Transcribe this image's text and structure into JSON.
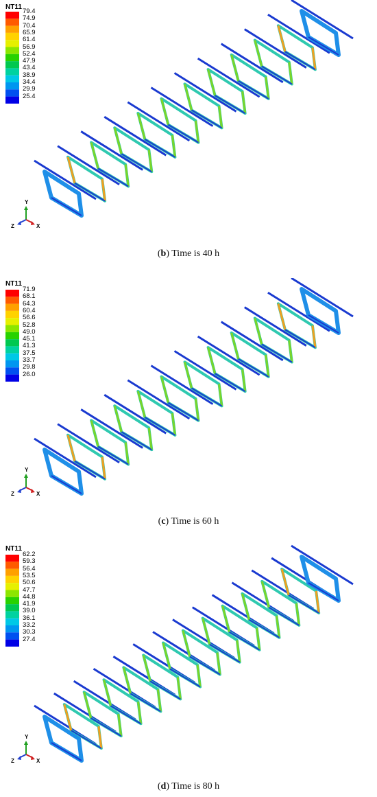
{
  "panels": [
    {
      "legend_title": "NT11",
      "ticks": [
        "79.4",
        "74.9",
        "70.4",
        "65.9",
        "61.4",
        "56.9",
        "52.4",
        "47.9",
        "43.4",
        "38.9",
        "34.4",
        "29.9",
        "25.4"
      ],
      "caption_letter": "b",
      "caption_text": " Time is 40 h"
    },
    {
      "legend_title": "NT11",
      "ticks": [
        "71.9",
        "68.1",
        "64.3",
        "60.4",
        "56.6",
        "52.8",
        "49.0",
        "45.1",
        "41.3",
        "37.5",
        "33.7",
        "29.8",
        "26.0"
      ],
      "caption_letter": "c",
      "caption_text": " Time is 60 h"
    },
    {
      "legend_title": "NT11",
      "ticks": [
        "62.2",
        "59.3",
        "56.4",
        "53.5",
        "50.6",
        "47.7",
        "44.8",
        "41.9",
        "39.0",
        "36.1",
        "33.2",
        "30.3",
        "27.4"
      ],
      "caption_letter": "d",
      "caption_text": " Time is 80 h"
    }
  ],
  "triad": {
    "y": "Y",
    "x": "X",
    "z": "Z"
  },
  "colors": {
    "scale": [
      "#ff0000",
      "#ff5a00",
      "#ffa000",
      "#ffd200",
      "#e6f000",
      "#8ce600",
      "#28d200",
      "#00c850",
      "#00d2a0",
      "#00c8e6",
      "#0096f0",
      "#0050f0",
      "#0000e6"
    ]
  }
}
